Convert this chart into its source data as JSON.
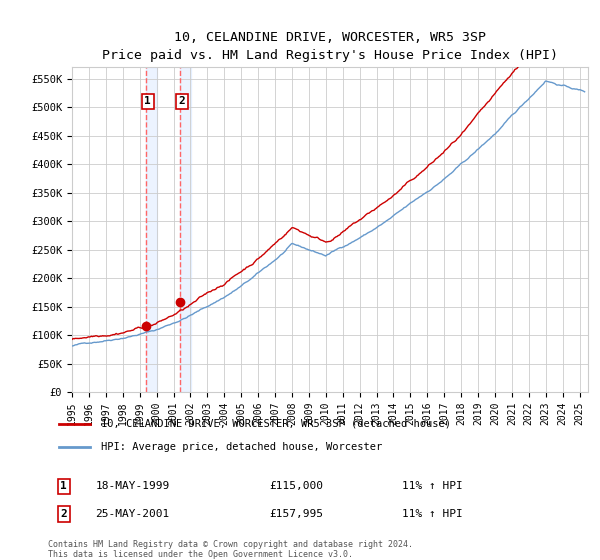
{
  "title": "10, CELANDINE DRIVE, WORCESTER, WR5 3SP",
  "subtitle": "Price paid vs. HM Land Registry's House Price Index (HPI)",
  "ylabel_ticks": [
    "£0",
    "£50K",
    "£100K",
    "£150K",
    "£200K",
    "£250K",
    "£300K",
    "£350K",
    "£400K",
    "£450K",
    "£500K",
    "£550K"
  ],
  "ylim": [
    0,
    570000
  ],
  "ytick_values": [
    0,
    50000,
    100000,
    150000,
    200000,
    250000,
    300000,
    350000,
    400000,
    450000,
    500000,
    550000
  ],
  "xmin": 1995.0,
  "xmax": 2025.5,
  "purchase1_x": 1999.375,
  "purchase1_y": 115000,
  "purchase2_x": 2001.4,
  "purchase2_y": 157995,
  "purchase1_label": "18-MAY-1999",
  "purchase1_price": "£115,000",
  "purchase1_hpi": "11% ↑ HPI",
  "purchase2_label": "25-MAY-2001",
  "purchase2_price": "£157,995",
  "purchase2_hpi": "11% ↑ HPI",
  "line_color_red": "#cc0000",
  "line_color_blue": "#6699cc",
  "vshade_color": "#aaccff",
  "vline_color": "#ff6666",
  "grid_color": "#cccccc",
  "background_color": "#ffffff",
  "legend_label_red": "10, CELANDINE DRIVE, WORCESTER, WR5 3SP (detached house)",
  "legend_label_blue": "HPI: Average price, detached house, Worcester",
  "footer": "Contains HM Land Registry data © Crown copyright and database right 2024.\nThis data is licensed under the Open Government Licence v3.0.",
  "box1_label": "1",
  "box2_label": "2"
}
